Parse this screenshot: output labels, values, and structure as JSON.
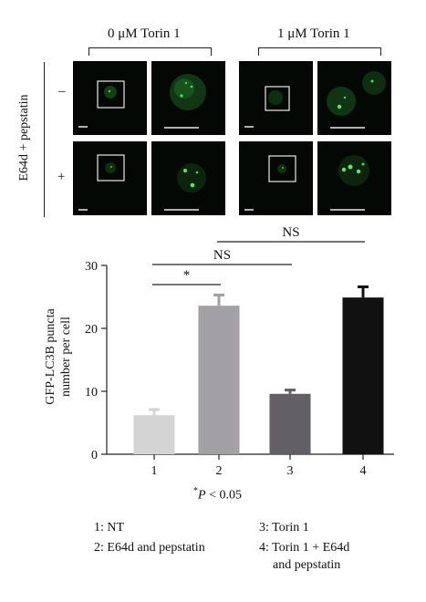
{
  "micrographs": {
    "conditions": [
      "0 μM Torin 1",
      "1 μM Torin 1"
    ],
    "treatment_label": "E64d + pepstatin",
    "row_signs": [
      "–",
      "+"
    ]
  },
  "chart_data": {
    "type": "bar",
    "categories": [
      "1",
      "2",
      "3",
      "4"
    ],
    "values": [
      6.2,
      23.6,
      9.6,
      24.9
    ],
    "errors": [
      0.9,
      1.7,
      0.6,
      1.7
    ],
    "colors": [
      "#d4d4d4",
      "#a2a0a5",
      "#626066",
      "#111111"
    ],
    "ylabel_lines": [
      "GFP-LC3B puncta",
      "number per cell"
    ],
    "ylim": [
      0,
      30
    ],
    "yticks": [
      0,
      10,
      20,
      30
    ],
    "significance": [
      {
        "from": 1,
        "to": 2,
        "label": "*"
      },
      {
        "from": 1,
        "to": 3,
        "label": "NS"
      },
      {
        "from": 2,
        "to": 4,
        "label": "NS"
      }
    ],
    "footnote_star": "*",
    "footnote_p": "P",
    "footnote_rest": " < 0.05"
  },
  "legend": [
    "1: NT",
    "2: E64d and pepstatin",
    "3: Torin 1",
    "4: Torin 1 + E64d",
    "and pepstatin"
  ]
}
